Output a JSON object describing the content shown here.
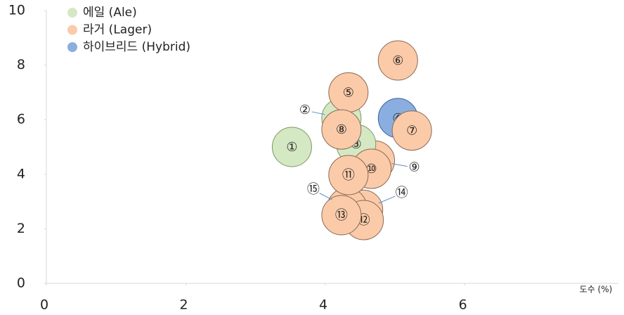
{
  "chart_data": {
    "type": "scatter",
    "x_label": "도수 (%)",
    "xlim": [
      0,
      8.2
    ],
    "xticks": [
      0,
      2,
      4,
      6
    ],
    "ylim": [
      0,
      10
    ],
    "yticks": [
      0,
      2,
      4,
      6,
      8,
      10
    ],
    "legend": "top-left",
    "series": [
      {
        "name": "에일 (Ale)",
        "color": "#d5e8c4",
        "x": [
          3.52,
          4.23,
          4.44
        ],
        "values": [
          5.0,
          6.06,
          5.1
        ],
        "labels": [
          "①",
          "②",
          "③"
        ]
      },
      {
        "name": "라거 (Lager)",
        "color": "#fbcba9",
        "x": [
          4.33,
          5.04,
          5.24,
          4.23,
          4.71,
          4.66,
          4.33,
          4.55,
          4.23,
          4.54,
          4.31
        ],
        "values": [
          7.0,
          8.17,
          5.6,
          5.64,
          4.5,
          4.2,
          3.97,
          2.32,
          2.5,
          2.7,
          2.78
        ],
        "labels": [
          "⑤",
          "⑥",
          "⑦",
          "⑧",
          "⑨",
          "⑩",
          "⑪",
          "⑫",
          "⑬",
          "⑭",
          "⑮"
        ]
      },
      {
        "name": "하이브리드 (Hybrid)",
        "color": "#8aaee0",
        "x": [
          5.04
        ],
        "values": [
          6.06
        ],
        "labels": [
          "④"
        ]
      }
    ]
  }
}
